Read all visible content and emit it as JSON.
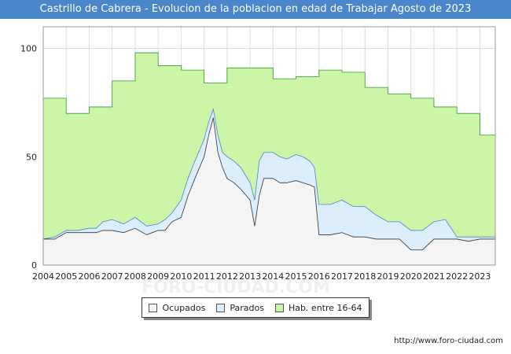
{
  "chart_data": {
    "type": "area",
    "title": "Castrillo de Cabrera - Evolucion de la poblacion en edad de Trabajar Agosto de 2023",
    "xlabel": "",
    "ylabel": "",
    "ylim": [
      0,
      110
    ],
    "y_ticks": [
      0,
      50,
      100
    ],
    "x_range": [
      2004,
      2023.67
    ],
    "x_ticks": [
      "2004",
      "2005",
      "2006",
      "2007",
      "2008",
      "2009",
      "2010",
      "2011",
      "2012",
      "2013",
      "2014",
      "2015",
      "2016",
      "2017",
      "2018",
      "2019",
      "2020",
      "2021",
      "2022",
      "2023"
    ],
    "grid": true,
    "legend_position": "bottom",
    "series": [
      {
        "name": "Hab. entre 16-64",
        "color": "#ccf5a8",
        "line_color": "#2e9e2e",
        "step": true,
        "x": [
          2004,
          2005,
          2006,
          2007,
          2008,
          2009,
          2010,
          2011,
          2012,
          2013,
          2014,
          2015,
          2016,
          2017,
          2018,
          2019,
          2020,
          2021,
          2022,
          2023,
          2023.67
        ],
        "values": [
          77,
          70,
          73,
          85,
          98,
          92,
          90,
          84,
          91,
          91,
          86,
          87,
          90,
          89,
          82,
          79,
          77,
          73,
          70,
          60,
          60
        ]
      },
      {
        "name": "Parados",
        "color": "#dceefc",
        "line_color": "#4a86c9",
        "x": [
          2004,
          2004.5,
          2005,
          2005.5,
          2006,
          2006.3,
          2006.6,
          2007,
          2007.5,
          2008,
          2008.5,
          2009,
          2009.3,
          2009.6,
          2010,
          2010.3,
          2010.6,
          2011,
          2011.2,
          2011.4,
          2011.6,
          2011.8,
          2012,
          2012.3,
          2012.6,
          2013,
          2013.2,
          2013.4,
          2013.6,
          2014,
          2014.3,
          2014.6,
          2015,
          2015.3,
          2015.6,
          2015.8,
          2016,
          2016.5,
          2017,
          2017.5,
          2018,
          2018.5,
          2019,
          2019.5,
          2020,
          2020.5,
          2021,
          2021.5,
          2022,
          2022.5,
          2023,
          2023.67
        ],
        "values": [
          12,
          13,
          16,
          16,
          17,
          17,
          20,
          21,
          19,
          22,
          18,
          19,
          21,
          24,
          30,
          40,
          48,
          58,
          66,
          72,
          60,
          52,
          50,
          48,
          45,
          38,
          30,
          48,
          52,
          52,
          50,
          49,
          51,
          50,
          48,
          45,
          28,
          28,
          30,
          27,
          27,
          23,
          20,
          20,
          16,
          16,
          20,
          21,
          13,
          13,
          13,
          13
        ]
      },
      {
        "name": "Ocupados",
        "color": "#f4f4f4",
        "line_color": "#333333",
        "x": [
          2004,
          2004.5,
          2005,
          2005.5,
          2006,
          2006.3,
          2006.6,
          2007,
          2007.5,
          2008,
          2008.5,
          2009,
          2009.3,
          2009.6,
          2010,
          2010.3,
          2010.6,
          2011,
          2011.2,
          2011.4,
          2011.6,
          2011.8,
          2012,
          2012.3,
          2012.6,
          2013,
          2013.2,
          2013.4,
          2013.6,
          2014,
          2014.3,
          2014.6,
          2015,
          2015.3,
          2015.6,
          2015.8,
          2016,
          2016.5,
          2017,
          2017.5,
          2018,
          2018.5,
          2019,
          2019.5,
          2020,
          2020.5,
          2021,
          2021.5,
          2022,
          2022.5,
          2023,
          2023.67
        ],
        "values": [
          12,
          12,
          15,
          15,
          15,
          15,
          16,
          16,
          15,
          17,
          14,
          16,
          16,
          20,
          22,
          32,
          40,
          50,
          60,
          68,
          52,
          45,
          40,
          38,
          35,
          30,
          18,
          32,
          40,
          40,
          38,
          38,
          39,
          38,
          37,
          36,
          14,
          14,
          15,
          13,
          13,
          12,
          12,
          12,
          7,
          7,
          12,
          12,
          12,
          11,
          12,
          12
        ]
      }
    ]
  },
  "legend": {
    "ocupados": "Ocupados",
    "parados": "Parados",
    "hab": "Hab. entre 16-64"
  },
  "footer_url": "http://www.foro-ciudad.com",
  "watermark": "FORO-CIUDAD.COM"
}
